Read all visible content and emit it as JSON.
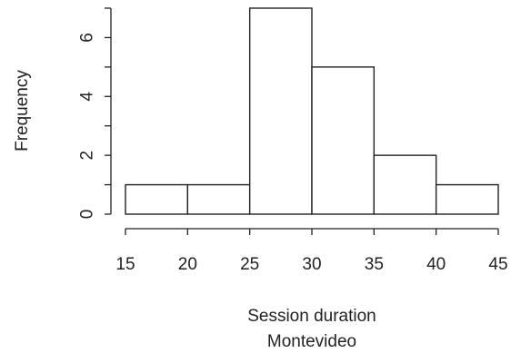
{
  "chart_data": {
    "type": "bar",
    "subtype": "histogram",
    "bins": [
      [
        15,
        20
      ],
      [
        20,
        25
      ],
      [
        25,
        30
      ],
      [
        30,
        35
      ],
      [
        35,
        40
      ],
      [
        40,
        45
      ]
    ],
    "values": [
      1,
      1,
      7,
      5,
      2,
      1
    ],
    "xlabel": "Session duration",
    "subtitle": "Montevideo",
    "ylabel": "Frequency",
    "xticks": [
      15,
      20,
      25,
      30,
      35,
      40,
      45
    ],
    "yticks": [
      0,
      2,
      4,
      6
    ],
    "xlim": [
      15,
      45
    ],
    "ylim": [
      0,
      7
    ],
    "grid": false,
    "colors": {
      "bar_fill": "#ffffff",
      "bar_stroke": "#222222"
    }
  }
}
